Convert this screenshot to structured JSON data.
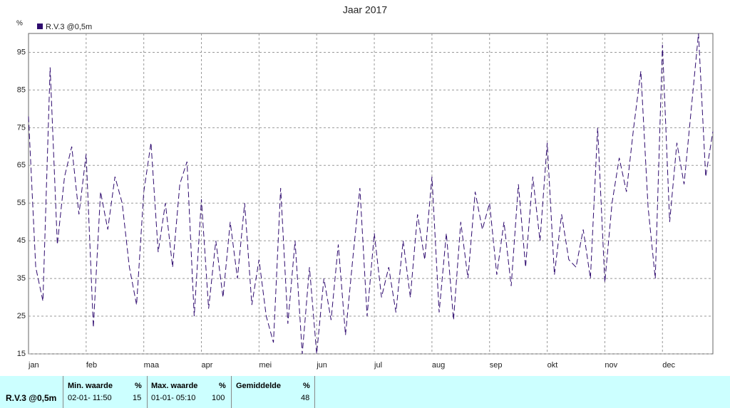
{
  "chart_data": {
    "type": "line",
    "title": "Jaar 2017",
    "y_label": "%",
    "categories": [
      "jan",
      null,
      null,
      null,
      null,
      null,
      null,
      null,
      "feb",
      null,
      null,
      null,
      null,
      null,
      null,
      null,
      "maa",
      null,
      null,
      null,
      null,
      null,
      null,
      null,
      "apr",
      null,
      null,
      null,
      null,
      null,
      null,
      null,
      "mei",
      null,
      null,
      null,
      null,
      null,
      null,
      null,
      "jun",
      null,
      null,
      null,
      null,
      null,
      null,
      null,
      "jul",
      null,
      null,
      null,
      null,
      null,
      null,
      null,
      "aug",
      null,
      null,
      null,
      null,
      null,
      null,
      null,
      "sep",
      null,
      null,
      null,
      null,
      null,
      null,
      null,
      "okt",
      null,
      null,
      null,
      null,
      null,
      null,
      null,
      "nov",
      null,
      null,
      null,
      null,
      null,
      null,
      null,
      "dec",
      null,
      null,
      null,
      null,
      null,
      null,
      null
    ],
    "series": [
      {
        "name": "R.V.3 @0,5m",
        "color": "#2e0a6e",
        "values": [
          78,
          38,
          29,
          91,
          44,
          62,
          70,
          52,
          68,
          22,
          58,
          48,
          62,
          55,
          38,
          28,
          58,
          71,
          42,
          55,
          38,
          60,
          66,
          25,
          56,
          27,
          45,
          30,
          50,
          35,
          55,
          28,
          40,
          25,
          18,
          59,
          23,
          45,
          15,
          38,
          15,
          35,
          24,
          44,
          20,
          40,
          59,
          25,
          47,
          30,
          38,
          26,
          45,
          30,
          52,
          40,
          62,
          26,
          47,
          24,
          50,
          35,
          58,
          48,
          55,
          36,
          50,
          33,
          60,
          38,
          62,
          45,
          71,
          36,
          52,
          40,
          38,
          48,
          35,
          75,
          34,
          55,
          67,
          58,
          75,
          90,
          54,
          35,
          97,
          50,
          71,
          60,
          80,
          100,
          62,
          74
        ]
      }
    ],
    "ylim": [
      15,
      100
    ],
    "yticks": [
      15,
      25,
      35,
      45,
      55,
      65,
      75,
      85,
      95
    ],
    "grid": true,
    "legend": "top-left"
  },
  "stats_panel": {
    "series_name": "R.V.3 @0,5m",
    "min": {
      "header": "Min. waarde",
      "unit": "%",
      "time": "02-01- 11:50",
      "value": "15"
    },
    "max": {
      "header": "Max. waarde",
      "unit": "%",
      "time": "01-01- 05:10",
      "value": "100"
    },
    "avg": {
      "header": "Gemiddelde",
      "unit": "%",
      "value": "48"
    }
  }
}
